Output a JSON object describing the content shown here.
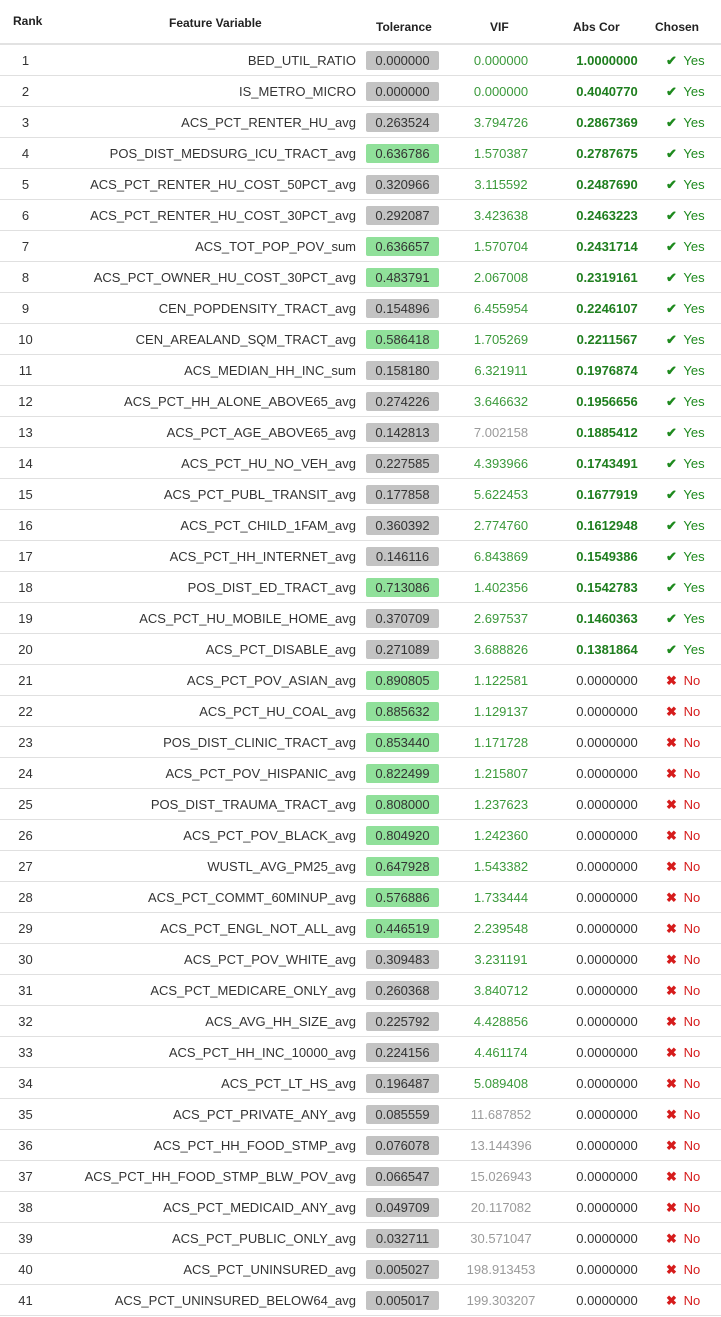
{
  "headers": {
    "rank": "Rank",
    "feature": "Feature Variable",
    "tolerance": "Tolerance",
    "vif": "VIF",
    "abs_cor": "Abs Cor",
    "chosen": "Chosen"
  },
  "colors": {
    "tol_green": "#90e09a",
    "tol_gray": "#c3c3c3",
    "vif_green": "#3b9a3b",
    "vif_gray": "#9a9a9a",
    "abs_green": "#1e7e1e",
    "yes_green": "#1e8a1e",
    "no_red": "#d61c1c"
  },
  "icons": {
    "yes": "check-icon",
    "no": "cross-icon"
  },
  "rows": [
    {
      "rank": "1",
      "feature": "BED_UTIL_RATIO",
      "tolerance": "0.000000",
      "tol_high": false,
      "vif": "0.000000",
      "vif_high": false,
      "abs_cor": "1.0000000",
      "chosen": "Yes"
    },
    {
      "rank": "2",
      "feature": "IS_METRO_MICRO",
      "tolerance": "0.000000",
      "tol_high": false,
      "vif": "0.000000",
      "vif_high": false,
      "abs_cor": "0.4040770",
      "chosen": "Yes"
    },
    {
      "rank": "3",
      "feature": "ACS_PCT_RENTER_HU_avg",
      "tolerance": "0.263524",
      "tol_high": false,
      "vif": "3.794726",
      "vif_high": false,
      "abs_cor": "0.2867369",
      "chosen": "Yes"
    },
    {
      "rank": "4",
      "feature": "POS_DIST_MEDSURG_ICU_TRACT_avg",
      "tolerance": "0.636786",
      "tol_high": true,
      "vif": "1.570387",
      "vif_high": false,
      "abs_cor": "0.2787675",
      "chosen": "Yes"
    },
    {
      "rank": "5",
      "feature": "ACS_PCT_RENTER_HU_COST_50PCT_avg",
      "tolerance": "0.320966",
      "tol_high": false,
      "vif": "3.115592",
      "vif_high": false,
      "abs_cor": "0.2487690",
      "chosen": "Yes"
    },
    {
      "rank": "6",
      "feature": "ACS_PCT_RENTER_HU_COST_30PCT_avg",
      "tolerance": "0.292087",
      "tol_high": false,
      "vif": "3.423638",
      "vif_high": false,
      "abs_cor": "0.2463223",
      "chosen": "Yes"
    },
    {
      "rank": "7",
      "feature": "ACS_TOT_POP_POV_sum",
      "tolerance": "0.636657",
      "tol_high": true,
      "vif": "1.570704",
      "vif_high": false,
      "abs_cor": "0.2431714",
      "chosen": "Yes"
    },
    {
      "rank": "8",
      "feature": "ACS_PCT_OWNER_HU_COST_30PCT_avg",
      "tolerance": "0.483791",
      "tol_high": true,
      "vif": "2.067008",
      "vif_high": false,
      "abs_cor": "0.2319161",
      "chosen": "Yes"
    },
    {
      "rank": "9",
      "feature": "CEN_POPDENSITY_TRACT_avg",
      "tolerance": "0.154896",
      "tol_high": false,
      "vif": "6.455954",
      "vif_high": false,
      "abs_cor": "0.2246107",
      "chosen": "Yes"
    },
    {
      "rank": "10",
      "feature": "CEN_AREALAND_SQM_TRACT_avg",
      "tolerance": "0.586418",
      "tol_high": true,
      "vif": "1.705269",
      "vif_high": false,
      "abs_cor": "0.2211567",
      "chosen": "Yes"
    },
    {
      "rank": "11",
      "feature": "ACS_MEDIAN_HH_INC_sum",
      "tolerance": "0.158180",
      "tol_high": false,
      "vif": "6.321911",
      "vif_high": false,
      "abs_cor": "0.1976874",
      "chosen": "Yes"
    },
    {
      "rank": "12",
      "feature": "ACS_PCT_HH_ALONE_ABOVE65_avg",
      "tolerance": "0.274226",
      "tol_high": false,
      "vif": "3.646632",
      "vif_high": false,
      "abs_cor": "0.1956656",
      "chosen": "Yes"
    },
    {
      "rank": "13",
      "feature": "ACS_PCT_AGE_ABOVE65_avg",
      "tolerance": "0.142813",
      "tol_high": false,
      "vif": "7.002158",
      "vif_high": true,
      "abs_cor": "0.1885412",
      "chosen": "Yes"
    },
    {
      "rank": "14",
      "feature": "ACS_PCT_HU_NO_VEH_avg",
      "tolerance": "0.227585",
      "tol_high": false,
      "vif": "4.393966",
      "vif_high": false,
      "abs_cor": "0.1743491",
      "chosen": "Yes"
    },
    {
      "rank": "15",
      "feature": "ACS_PCT_PUBL_TRANSIT_avg",
      "tolerance": "0.177858",
      "tol_high": false,
      "vif": "5.622453",
      "vif_high": false,
      "abs_cor": "0.1677919",
      "chosen": "Yes"
    },
    {
      "rank": "16",
      "feature": "ACS_PCT_CHILD_1FAM_avg",
      "tolerance": "0.360392",
      "tol_high": false,
      "vif": "2.774760",
      "vif_high": false,
      "abs_cor": "0.1612948",
      "chosen": "Yes"
    },
    {
      "rank": "17",
      "feature": "ACS_PCT_HH_INTERNET_avg",
      "tolerance": "0.146116",
      "tol_high": false,
      "vif": "6.843869",
      "vif_high": false,
      "abs_cor": "0.1549386",
      "chosen": "Yes"
    },
    {
      "rank": "18",
      "feature": "POS_DIST_ED_TRACT_avg",
      "tolerance": "0.713086",
      "tol_high": true,
      "vif": "1.402356",
      "vif_high": false,
      "abs_cor": "0.1542783",
      "chosen": "Yes"
    },
    {
      "rank": "19",
      "feature": "ACS_PCT_HU_MOBILE_HOME_avg",
      "tolerance": "0.370709",
      "tol_high": false,
      "vif": "2.697537",
      "vif_high": false,
      "abs_cor": "0.1460363",
      "chosen": "Yes"
    },
    {
      "rank": "20",
      "feature": "ACS_PCT_DISABLE_avg",
      "tolerance": "0.271089",
      "tol_high": false,
      "vif": "3.688826",
      "vif_high": false,
      "abs_cor": "0.1381864",
      "chosen": "Yes"
    },
    {
      "rank": "21",
      "feature": "ACS_PCT_POV_ASIAN_avg",
      "tolerance": "0.890805",
      "tol_high": true,
      "vif": "1.122581",
      "vif_high": false,
      "abs_cor": "0.0000000",
      "chosen": "No"
    },
    {
      "rank": "22",
      "feature": "ACS_PCT_HU_COAL_avg",
      "tolerance": "0.885632",
      "tol_high": true,
      "vif": "1.129137",
      "vif_high": false,
      "abs_cor": "0.0000000",
      "chosen": "No"
    },
    {
      "rank": "23",
      "feature": "POS_DIST_CLINIC_TRACT_avg",
      "tolerance": "0.853440",
      "tol_high": true,
      "vif": "1.171728",
      "vif_high": false,
      "abs_cor": "0.0000000",
      "chosen": "No"
    },
    {
      "rank": "24",
      "feature": "ACS_PCT_POV_HISPANIC_avg",
      "tolerance": "0.822499",
      "tol_high": true,
      "vif": "1.215807",
      "vif_high": false,
      "abs_cor": "0.0000000",
      "chosen": "No"
    },
    {
      "rank": "25",
      "feature": "POS_DIST_TRAUMA_TRACT_avg",
      "tolerance": "0.808000",
      "tol_high": true,
      "vif": "1.237623",
      "vif_high": false,
      "abs_cor": "0.0000000",
      "chosen": "No"
    },
    {
      "rank": "26",
      "feature": "ACS_PCT_POV_BLACK_avg",
      "tolerance": "0.804920",
      "tol_high": true,
      "vif": "1.242360",
      "vif_high": false,
      "abs_cor": "0.0000000",
      "chosen": "No"
    },
    {
      "rank": "27",
      "feature": "WUSTL_AVG_PM25_avg",
      "tolerance": "0.647928",
      "tol_high": true,
      "vif": "1.543382",
      "vif_high": false,
      "abs_cor": "0.0000000",
      "chosen": "No"
    },
    {
      "rank": "28",
      "feature": "ACS_PCT_COMMT_60MINUP_avg",
      "tolerance": "0.576886",
      "tol_high": true,
      "vif": "1.733444",
      "vif_high": false,
      "abs_cor": "0.0000000",
      "chosen": "No"
    },
    {
      "rank": "29",
      "feature": "ACS_PCT_ENGL_NOT_ALL_avg",
      "tolerance": "0.446519",
      "tol_high": true,
      "vif": "2.239548",
      "vif_high": false,
      "abs_cor": "0.0000000",
      "chosen": "No"
    },
    {
      "rank": "30",
      "feature": "ACS_PCT_POV_WHITE_avg",
      "tolerance": "0.309483",
      "tol_high": false,
      "vif": "3.231191",
      "vif_high": false,
      "abs_cor": "0.0000000",
      "chosen": "No"
    },
    {
      "rank": "31",
      "feature": "ACS_PCT_MEDICARE_ONLY_avg",
      "tolerance": "0.260368",
      "tol_high": false,
      "vif": "3.840712",
      "vif_high": false,
      "abs_cor": "0.0000000",
      "chosen": "No"
    },
    {
      "rank": "32",
      "feature": "ACS_AVG_HH_SIZE_avg",
      "tolerance": "0.225792",
      "tol_high": false,
      "vif": "4.428856",
      "vif_high": false,
      "abs_cor": "0.0000000",
      "chosen": "No"
    },
    {
      "rank": "33",
      "feature": "ACS_PCT_HH_INC_10000_avg",
      "tolerance": "0.224156",
      "tol_high": false,
      "vif": "4.461174",
      "vif_high": false,
      "abs_cor": "0.0000000",
      "chosen": "No"
    },
    {
      "rank": "34",
      "feature": "ACS_PCT_LT_HS_avg",
      "tolerance": "0.196487",
      "tol_high": false,
      "vif": "5.089408",
      "vif_high": false,
      "abs_cor": "0.0000000",
      "chosen": "No"
    },
    {
      "rank": "35",
      "feature": "ACS_PCT_PRIVATE_ANY_avg",
      "tolerance": "0.085559",
      "tol_high": false,
      "vif": "11.687852",
      "vif_high": true,
      "abs_cor": "0.0000000",
      "chosen": "No"
    },
    {
      "rank": "36",
      "feature": "ACS_PCT_HH_FOOD_STMP_avg",
      "tolerance": "0.076078",
      "tol_high": false,
      "vif": "13.144396",
      "vif_high": true,
      "abs_cor": "0.0000000",
      "chosen": "No"
    },
    {
      "rank": "37",
      "feature": "ACS_PCT_HH_FOOD_STMP_BLW_POV_avg",
      "tolerance": "0.066547",
      "tol_high": false,
      "vif": "15.026943",
      "vif_high": true,
      "abs_cor": "0.0000000",
      "chosen": "No"
    },
    {
      "rank": "38",
      "feature": "ACS_PCT_MEDICAID_ANY_avg",
      "tolerance": "0.049709",
      "tol_high": false,
      "vif": "20.117082",
      "vif_high": true,
      "abs_cor": "0.0000000",
      "chosen": "No"
    },
    {
      "rank": "39",
      "feature": "ACS_PCT_PUBLIC_ONLY_avg",
      "tolerance": "0.032711",
      "tol_high": false,
      "vif": "30.571047",
      "vif_high": true,
      "abs_cor": "0.0000000",
      "chosen": "No"
    },
    {
      "rank": "40",
      "feature": "ACS_PCT_UNINSURED_avg",
      "tolerance": "0.005027",
      "tol_high": false,
      "vif": "198.913453",
      "vif_high": true,
      "abs_cor": "0.0000000",
      "chosen": "No"
    },
    {
      "rank": "41",
      "feature": "ACS_PCT_UNINSURED_BELOW64_avg",
      "tolerance": "0.005017",
      "tol_high": false,
      "vif": "199.303207",
      "vif_high": true,
      "abs_cor": "0.0000000",
      "chosen": "No"
    }
  ]
}
